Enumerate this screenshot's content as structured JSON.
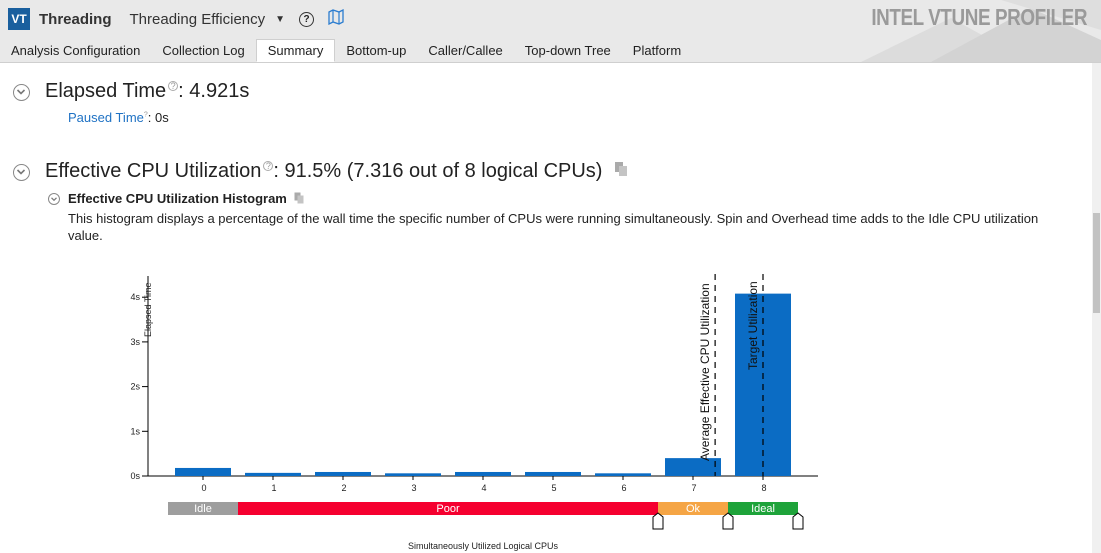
{
  "header": {
    "logo_text": "VT",
    "analysis": "Threading",
    "viewpoint": "Threading Efficiency",
    "product": "INTEL VTUNE PROFILER"
  },
  "tabs": [
    {
      "label": "Analysis Configuration"
    },
    {
      "label": "Collection Log"
    },
    {
      "label": "Summary",
      "active": true
    },
    {
      "label": "Bottom-up"
    },
    {
      "label": "Caller/Callee"
    },
    {
      "label": "Top-down Tree"
    },
    {
      "label": "Platform"
    }
  ],
  "summary": {
    "elapsed": {
      "label": "Elapsed Time",
      "value": ": 4.921s"
    },
    "paused": {
      "label": "Paused Time",
      "value": ":  0s"
    },
    "cpu": {
      "label": "Effective CPU Utilization",
      "value": ": 91.5% (7.316 out of 8 logical CPUs)"
    },
    "histogram": {
      "title": "Effective CPU Utilization Histogram",
      "description": "This histogram displays a percentage of the wall time the specific number of CPUs were running simultaneously. Spin and Overhead time adds to the Idle CPU utilization value."
    }
  },
  "chart_data": {
    "type": "bar",
    "categories": [
      "0",
      "1",
      "2",
      "3",
      "4",
      "5",
      "6",
      "7",
      "8"
    ],
    "values": [
      0.18,
      0.07,
      0.09,
      0.06,
      0.09,
      0.09,
      0.06,
      0.4,
      4.08
    ],
    "ylabel": "Elapsed Time",
    "xlabel": "Simultaneously Utilized Logical CPUs",
    "ylim": [
      0,
      4.4
    ],
    "yticks": [
      {
        "v": 0,
        "label": "0s"
      },
      {
        "v": 1,
        "label": "1s"
      },
      {
        "v": 2,
        "label": "2s"
      },
      {
        "v": 3,
        "label": "3s"
      },
      {
        "v": 4,
        "label": "4s"
      }
    ],
    "markers": [
      {
        "label": "Average Effective CPU Utilization",
        "x": 7.316
      },
      {
        "label": "Target Utilization",
        "x": 8
      }
    ],
    "zones": [
      {
        "label": "Idle",
        "from": -0.5,
        "to": 0.5,
        "color": "#9e9e9e"
      },
      {
        "label": "Poor",
        "from": 0.5,
        "to": 6.5,
        "color": "#f5002f"
      },
      {
        "label": "Ok",
        "from": 6.5,
        "to": 7.5,
        "color": "#f5a545"
      },
      {
        "label": "Ideal",
        "from": 7.5,
        "to": 8.5,
        "color": "#1ea33a"
      }
    ],
    "bar_color": "#0b6cc4",
    "grid": false
  }
}
